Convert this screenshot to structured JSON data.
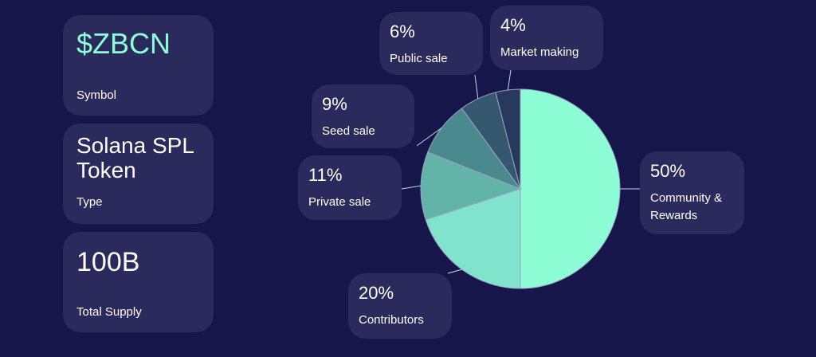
{
  "info": [
    {
      "value": "$ZBCN",
      "label": "Symbol"
    },
    {
      "value": "Solana SPL Token",
      "label": "Type"
    },
    {
      "value": "100B",
      "label": "Total Supply"
    }
  ],
  "colors": {
    "background": "#16164a",
    "card": "#2a2a5c",
    "accent": "#8dfdd6"
  },
  "chart_data": {
    "type": "pie",
    "title": "",
    "slices": [
      {
        "label": "Community & Rewards",
        "pct_label": "50%",
        "value": 50,
        "color": "#8dfdd6"
      },
      {
        "label": "Contributors",
        "pct_label": "20%",
        "value": 20,
        "color": "#80e3cb"
      },
      {
        "label": "Private sale",
        "pct_label": "11%",
        "value": 11,
        "color": "#62b3a8"
      },
      {
        "label": "Seed sale",
        "pct_label": "9%",
        "value": 9,
        "color": "#4a8a8f"
      },
      {
        "label": "Public sale",
        "pct_label": "6%",
        "value": 6,
        "color": "#35586f"
      },
      {
        "label": "Market making",
        "pct_label": "4%",
        "value": 4,
        "color": "#27395d"
      }
    ]
  }
}
